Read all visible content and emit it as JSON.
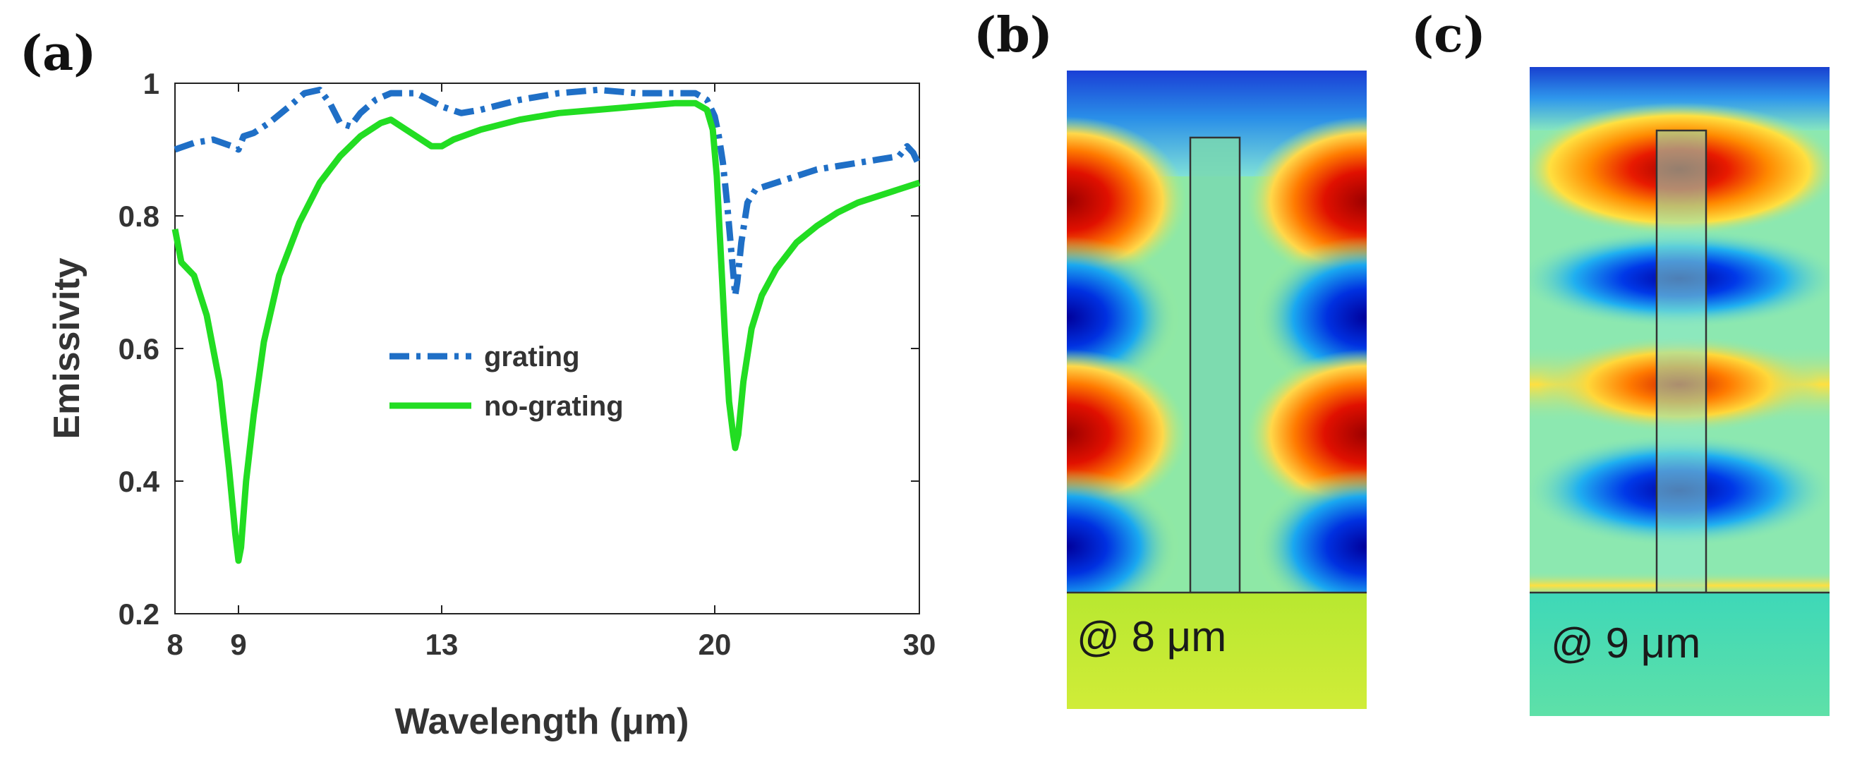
{
  "panels": {
    "a": "(a)",
    "b": "(b)",
    "c": "(c)"
  },
  "chart_data": {
    "type": "line",
    "title": "",
    "xlabel": "Wavelength (μm)",
    "ylabel": "Emissivity",
    "xticks": [
      8,
      9,
      13,
      20,
      30
    ],
    "x_tick_labels": [
      "8",
      "9",
      "13",
      "20",
      "30"
    ],
    "yticks": [
      0.2,
      0.4,
      0.6,
      0.8,
      1.0
    ],
    "y_tick_labels": [
      "0.2",
      "0.4",
      "0.6",
      "0.8",
      "1"
    ],
    "ylim": [
      0.2,
      1.0
    ],
    "x_axis_note": "piecewise axis: ticks at 8, 9, 13, 20, 30 are drawn at uneven spacing",
    "legend_position": "center",
    "series": [
      {
        "name": "grating",
        "color": "#1f6fc6",
        "style": "dash-dot",
        "x": [
          8,
          8.3,
          8.6,
          8.9,
          9.0,
          9.1,
          9.3,
          9.6,
          10.0,
          10.3,
          10.6,
          10.8,
          11.0,
          11.2,
          11.4,
          11.7,
          12.0,
          12.5,
          13.0,
          13.5,
          14,
          15,
          16,
          17,
          18,
          19,
          19.5,
          19.8,
          20.0,
          20.2,
          20.4,
          20.6,
          20.8,
          21.0,
          21.1,
          21.3,
          21.6,
          22.0,
          22.5,
          23,
          24,
          25,
          26,
          27,
          28,
          29,
          29.4,
          29.7,
          30
        ],
        "y": [
          0.9,
          0.91,
          0.915,
          0.905,
          0.9,
          0.92,
          0.925,
          0.94,
          0.965,
          0.985,
          0.99,
          0.97,
          0.94,
          0.935,
          0.955,
          0.975,
          0.985,
          0.985,
          0.965,
          0.955,
          0.96,
          0.975,
          0.985,
          0.99,
          0.985,
          0.985,
          0.985,
          0.975,
          0.95,
          0.92,
          0.88,
          0.82,
          0.75,
          0.68,
          0.7,
          0.76,
          0.82,
          0.84,
          0.845,
          0.85,
          0.86,
          0.87,
          0.875,
          0.88,
          0.885,
          0.89,
          0.905,
          0.895,
          0.875
        ]
      },
      {
        "name": "no-grating",
        "color": "#22dd22",
        "style": "solid",
        "x": [
          8,
          8.1,
          8.3,
          8.5,
          8.7,
          8.85,
          8.95,
          9.0,
          9.05,
          9.15,
          9.3,
          9.5,
          9.8,
          10.2,
          10.6,
          11.0,
          11.4,
          11.8,
          12.0,
          12.2,
          12.5,
          12.8,
          13.0,
          13.3,
          14,
          15,
          16,
          17,
          18,
          19,
          19.5,
          19.8,
          19.95,
          20.1,
          20.3,
          20.5,
          20.7,
          20.9,
          21.0,
          21.15,
          21.4,
          21.8,
          22.3,
          23,
          24,
          25,
          26,
          27,
          28,
          29,
          30
        ],
        "y": [
          0.78,
          0.73,
          0.71,
          0.65,
          0.55,
          0.42,
          0.32,
          0.28,
          0.3,
          0.4,
          0.5,
          0.61,
          0.71,
          0.79,
          0.85,
          0.89,
          0.92,
          0.94,
          0.945,
          0.935,
          0.92,
          0.905,
          0.905,
          0.915,
          0.93,
          0.945,
          0.955,
          0.96,
          0.965,
          0.97,
          0.97,
          0.96,
          0.93,
          0.86,
          0.74,
          0.62,
          0.52,
          0.47,
          0.45,
          0.47,
          0.55,
          0.63,
          0.68,
          0.72,
          0.76,
          0.785,
          0.805,
          0.82,
          0.83,
          0.84,
          0.85
        ]
      }
    ]
  },
  "field_maps": {
    "b": {
      "caption": "@ 8 μm"
    },
    "c": {
      "caption": "@ 9 μm"
    }
  },
  "colors": {
    "grating": "#1f6fc6",
    "no_grating": "#22dd22",
    "jet_low": "#0000a8",
    "jet_mid": "#3dd8d8",
    "jet_high": "#c80000"
  }
}
